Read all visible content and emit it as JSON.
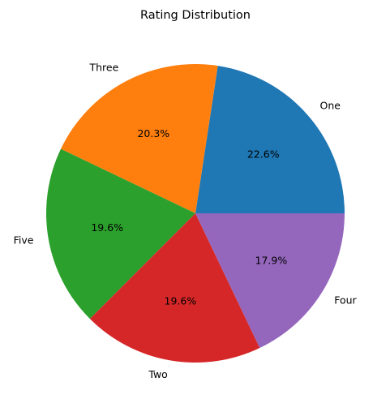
{
  "chart_data": {
    "type": "pie",
    "title": "Rating Distribution",
    "start_angle_deg": 0,
    "direction": "counterclockwise",
    "slices": [
      {
        "label": "One",
        "value": 22.6,
        "pct_label": "22.6%",
        "color": "#1f77b4"
      },
      {
        "label": "Three",
        "value": 20.3,
        "pct_label": "20.3%",
        "color": "#ff7f0e"
      },
      {
        "label": "Five",
        "value": 19.6,
        "pct_label": "19.6%",
        "color": "#2ca02c"
      },
      {
        "label": "Two",
        "value": 19.6,
        "pct_label": "19.6%",
        "color": "#d62728"
      },
      {
        "label": "Four",
        "value": 17.9,
        "pct_label": "17.9%",
        "color": "#9467bd"
      }
    ]
  }
}
